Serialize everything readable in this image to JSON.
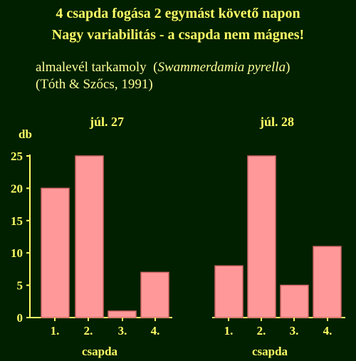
{
  "header": {
    "title_line1": "4 csapda fogása 2 egymást követő napon",
    "title_line2": "Nagy variabilitás - a csapda nem mágnes!",
    "species_common": "almalevél tarkamoly",
    "species_latin": "Swammerdamia pyrella",
    "citation": "(Tóth & Szőcs, 1991)"
  },
  "colors": {
    "background": "#002000",
    "title": "#ffff66",
    "text": "#ffff99",
    "bar_fill": "#ff9999",
    "bar_stroke": "#cc6666",
    "axis": "#ffff66"
  },
  "chart_data": {
    "type": "bar",
    "ylabel": "db",
    "xlabel": "csapda",
    "ylim": [
      0,
      25
    ],
    "yticks": [
      0,
      5,
      10,
      15,
      20,
      25
    ],
    "grid": false,
    "panels": [
      {
        "title": "júl. 27",
        "categories": [
          "1.",
          "2.",
          "3.",
          "4."
        ],
        "values": [
          20,
          25,
          1,
          7
        ]
      },
      {
        "title": "júl. 28",
        "categories": [
          "1.",
          "2.",
          "3.",
          "4."
        ],
        "values": [
          8,
          25,
          5,
          11
        ]
      }
    ]
  }
}
